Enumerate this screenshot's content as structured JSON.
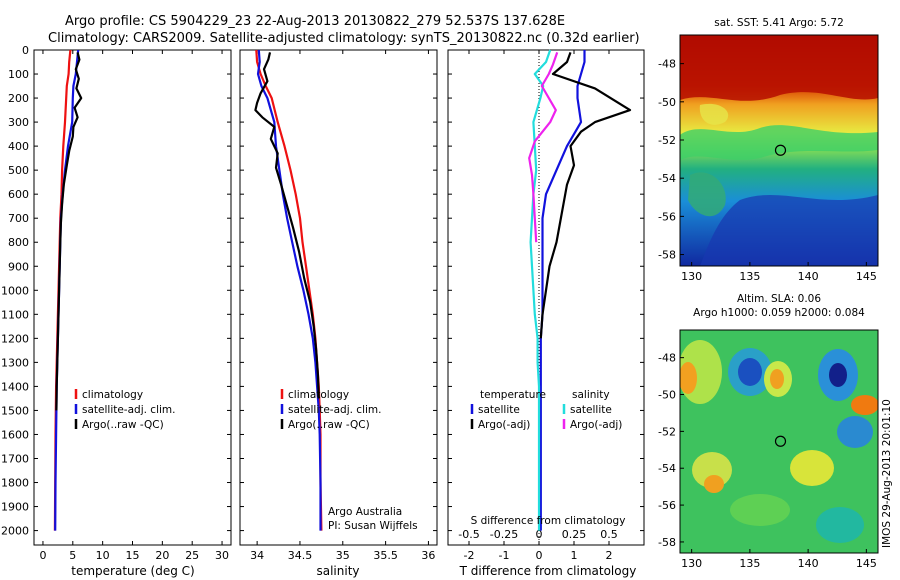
{
  "header": {
    "line1": "Argo profile: CS 5904229_23 22-Aug-2013 20130822_279 52.537S 137.628E",
    "line2": "Climatology: CARS2009. Satellite-adjusted climatology: synTS_20130822.nc (0.32d earlier)"
  },
  "colors": {
    "climatology": "#ee1111",
    "satellite": "#1111dd",
    "argo": "#000000",
    "s_satellite": "#22dddd",
    "s_argo": "#ee22ee"
  },
  "depth_axis": {
    "ticks": [
      0,
      100,
      200,
      300,
      400,
      500,
      600,
      700,
      800,
      900,
      1000,
      1100,
      1200,
      1300,
      1400,
      1500,
      1600,
      1700,
      1800,
      1900,
      2000
    ],
    "range": [
      0,
      2060
    ]
  },
  "chart_data": [
    {
      "type": "line",
      "id": "temperature",
      "xlabel": "temperature (deg C)",
      "xlim": [
        -1.5,
        31.5
      ],
      "xticks": [
        0,
        5,
        10,
        15,
        20,
        25,
        30
      ],
      "legend": {
        "placement": "lower-center",
        "entries": [
          {
            "label": "climatology",
            "color_key": "climatology"
          },
          {
            "label": "satellite-adj. clim.",
            "color_key": "satellite"
          },
          {
            "label": "Argo(..raw -QC)",
            "color_key": "argo"
          }
        ]
      },
      "series": [
        {
          "name": "climatology",
          "color_key": "climatology",
          "x": [
            4.6,
            4.4,
            4.3,
            4.0,
            3.9,
            3.7,
            3.4,
            3.2,
            3.1,
            2.9,
            2.8,
            2.7,
            2.6,
            2.5,
            2.4,
            2.3,
            2.2,
            2.15,
            2.1,
            2.05,
            2.0
          ],
          "y": [
            0,
            50,
            100,
            150,
            200,
            300,
            400,
            500,
            600,
            700,
            800,
            900,
            1000,
            1100,
            1200,
            1300,
            1400,
            1500,
            1600,
            1800,
            2000
          ]
        },
        {
          "name": "satellite-adj. clim.",
          "color_key": "satellite",
          "x": [
            5.9,
            5.7,
            5.5,
            5.1,
            5.0,
            4.9,
            4.2,
            3.7,
            3.3,
            3.0,
            2.9,
            2.8,
            2.7,
            2.6,
            2.5,
            2.4,
            2.3,
            2.25,
            2.2,
            2.1,
            2.05
          ],
          "y": [
            0,
            50,
            100,
            150,
            200,
            300,
            400,
            500,
            600,
            700,
            800,
            900,
            1000,
            1100,
            1200,
            1300,
            1400,
            1500,
            1600,
            1800,
            2000
          ]
        },
        {
          "name": "Argo(..raw -QC)",
          "color_key": "argo",
          "x": [
            5.8,
            6.1,
            5.5,
            6.0,
            5.6,
            6.4,
            5.3,
            5.8,
            5.1,
            5.0,
            4.4,
            4.0,
            3.5,
            3.2,
            3.0,
            2.9,
            2.8,
            2.7,
            2.6,
            2.5,
            2.4,
            2.3,
            2.25
          ],
          "y": [
            10,
            40,
            80,
            120,
            160,
            200,
            240,
            280,
            320,
            360,
            420,
            480,
            560,
            640,
            720,
            800,
            900,
            1000,
            1100,
            1200,
            1300,
            1400,
            1500
          ]
        }
      ]
    },
    {
      "type": "line",
      "id": "salinity",
      "xlabel": "salinity",
      "xlim": [
        33.8,
        36.1
      ],
      "xticks": [
        34,
        34.5,
        35,
        35.5,
        36
      ],
      "legend": {
        "placement": "lower-center",
        "entries": [
          {
            "label": "climatology",
            "color_key": "climatology"
          },
          {
            "label": "satellite-adj. clim.",
            "color_key": "satellite"
          },
          {
            "label": "Argo(..raw -QC)",
            "color_key": "argo"
          }
        ]
      },
      "annotations": [
        "Argo Australia",
        "PI: Susan Wijffels"
      ],
      "series": [
        {
          "name": "climatology",
          "color_key": "climatology",
          "x": [
            33.99,
            34.0,
            34.04,
            34.1,
            34.17,
            34.24,
            34.32,
            34.39,
            34.45,
            34.5,
            34.53,
            34.57,
            34.61,
            34.65,
            34.68,
            34.7,
            34.72,
            34.73,
            34.74,
            34.74,
            34.75
          ],
          "y": [
            0,
            50,
            100,
            150,
            200,
            300,
            400,
            500,
            600,
            700,
            800,
            900,
            1000,
            1100,
            1200,
            1300,
            1400,
            1500,
            1600,
            1800,
            2000
          ]
        },
        {
          "name": "satellite-adj. clim.",
          "color_key": "satellite",
          "x": [
            34.02,
            34.03,
            34.01,
            34.05,
            34.12,
            34.2,
            34.22,
            34.26,
            34.3,
            34.35,
            34.41,
            34.47,
            34.54,
            34.6,
            34.65,
            34.68,
            34.7,
            34.72,
            34.73,
            34.74,
            34.74
          ],
          "y": [
            0,
            50,
            100,
            150,
            200,
            300,
            400,
            500,
            600,
            700,
            800,
            900,
            1000,
            1100,
            1200,
            1300,
            1400,
            1500,
            1600,
            1800,
            2000
          ]
        },
        {
          "name": "Argo(..raw -QC)",
          "color_key": "argo",
          "x": [
            34.15,
            34.13,
            34.08,
            34.12,
            34.04,
            34.0,
            33.98,
            34.06,
            34.2,
            34.16,
            34.24,
            34.22,
            34.28,
            34.35,
            34.42,
            34.49,
            34.55,
            34.62,
            34.66,
            34.69,
            34.71,
            34.72
          ],
          "y": [
            10,
            40,
            80,
            130,
            180,
            220,
            250,
            280,
            320,
            370,
            430,
            490,
            560,
            650,
            740,
            840,
            950,
            1050,
            1150,
            1250,
            1350,
            1450
          ]
        }
      ]
    },
    {
      "type": "line",
      "id": "differences",
      "xlabel": "T difference from climatology",
      "xlim": [
        -2.6,
        3.0
      ],
      "xticks": [
        -2,
        -1,
        0,
        1,
        2
      ],
      "xlabel_top": "S difference from climatology",
      "xticks_top": [
        -0.5,
        -0.25,
        0,
        0.25,
        0.5
      ],
      "legend": {
        "placement": "lower-center",
        "entries": [
          {
            "label": "temperature",
            "color_key": ""
          },
          {
            "label": "satellite",
            "color_key": "satellite"
          },
          {
            "label": "Argo(-adj)",
            "color_key": "argo"
          },
          {
            "label": "salinity",
            "color_key": ""
          },
          {
            "label": "satellite",
            "color_key": "s_satellite"
          },
          {
            "label": "Argo(-adj)",
            "color_key": "s_argo"
          }
        ]
      },
      "series": [
        {
          "name": "temperature satellite",
          "color_key": "satellite",
          "x": [
            1.3,
            1.3,
            1.2,
            1.1,
            1.1,
            1.2,
            0.8,
            0.5,
            0.2,
            0.1,
            0.1,
            0.1,
            0.1,
            0.1,
            0.05,
            0.05,
            0.05,
            0.05,
            0.05,
            0.05,
            0.05
          ],
          "y": [
            0,
            50,
            100,
            150,
            200,
            300,
            400,
            500,
            600,
            700,
            800,
            900,
            1000,
            1100,
            1200,
            1300,
            1400,
            1500,
            1600,
            1800,
            2000
          ]
        },
        {
          "name": "temperature Argo(-adj)",
          "color_key": "argo",
          "x": [
            0.9,
            0.8,
            0.4,
            1.6,
            2.6,
            1.6,
            1.2,
            0.9,
            1.0,
            0.8,
            0.7,
            0.6,
            0.5,
            0.3,
            0.2,
            0.1,
            0.05
          ],
          "y": [
            10,
            50,
            100,
            160,
            250,
            300,
            340,
            400,
            480,
            560,
            640,
            720,
            800,
            900,
            1000,
            1100,
            1200
          ]
        },
        {
          "name": "salinity satellite",
          "color_key": "s_satellite",
          "x": [
            0.08,
            0.05,
            -0.03,
            0.03,
            0.01,
            -0.04,
            -0.03,
            -0.02,
            -0.04,
            -0.05,
            -0.06,
            -0.05,
            -0.04,
            -0.03,
            -0.01,
            -0.01,
            0.0,
            0.0,
            0.0,
            0.0,
            0.0
          ],
          "y": [
            0,
            50,
            100,
            150,
            200,
            300,
            400,
            500,
            600,
            700,
            800,
            900,
            1000,
            1100,
            1200,
            1300,
            1400,
            1500,
            1600,
            1800,
            2000
          ]
        },
        {
          "name": "salinity Argo(-adj)",
          "color_key": "s_argo",
          "x": [
            0.13,
            0.1,
            0.07,
            0.02,
            0.12,
            0.08,
            -0.03,
            -0.07,
            -0.05,
            -0.04,
            -0.03,
            -0.02
          ],
          "y": [
            10,
            60,
            100,
            150,
            250,
            300,
            380,
            450,
            520,
            600,
            700,
            800
          ]
        }
      ]
    },
    {
      "type": "heatmap",
      "id": "sst_map",
      "title": "sat. SST: 5.41  Argo: 5.72",
      "xticks": [
        130,
        135,
        140,
        145
      ],
      "yticks": [
        -48,
        -50,
        -52,
        -54,
        -56,
        -58
      ],
      "xlim": [
        129.0,
        146.0
      ],
      "ylim": [
        -58.6,
        -46.5
      ],
      "marker": {
        "x": 137.628,
        "y": -52.537
      }
    },
    {
      "type": "heatmap",
      "id": "sla_map",
      "title": "Altim. SLA: 0.06",
      "subtitle": "Argo h1000: 0.059  h2000: 0.084",
      "xticks": [
        130,
        135,
        140,
        145
      ],
      "yticks": [
        -48,
        -50,
        -52,
        -54,
        -56,
        -58
      ],
      "xlim": [
        129.0,
        146.0
      ],
      "ylim": [
        -58.6,
        -46.5
      ],
      "marker": {
        "x": 137.628,
        "y": -52.537
      }
    }
  ],
  "footer_stamp": "IMOS 29-Aug-2013 20:01:10"
}
